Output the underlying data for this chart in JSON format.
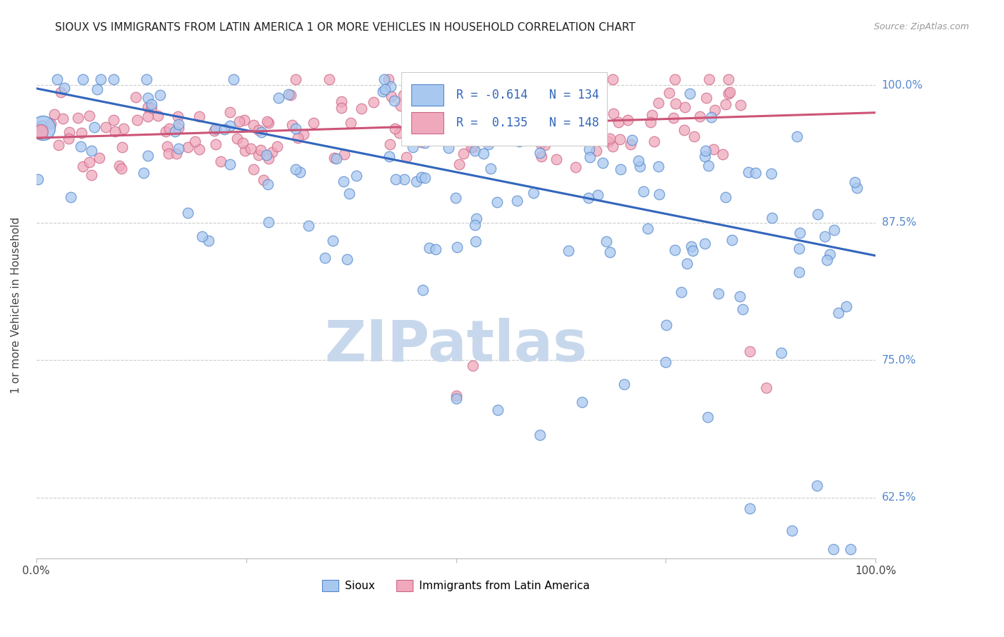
{
  "title": "SIOUX VS IMMIGRANTS FROM LATIN AMERICA 1 OR MORE VEHICLES IN HOUSEHOLD CORRELATION CHART",
  "source": "Source: ZipAtlas.com",
  "ylabel": "1 or more Vehicles in Household",
  "ytick_labels": [
    "62.5%",
    "75.0%",
    "87.5%",
    "100.0%"
  ],
  "ytick_values": [
    0.625,
    0.75,
    0.875,
    1.0
  ],
  "xlim": [
    0.0,
    1.0
  ],
  "ylim": [
    0.57,
    1.03
  ],
  "legend_blue_label": "Sioux",
  "legend_pink_label": "Immigrants from Latin America",
  "R_blue": -0.614,
  "N_blue": 134,
  "R_pink": 0.135,
  "N_pink": 148,
  "blue_color": "#A8C8F0",
  "pink_color": "#F0A8BC",
  "blue_edge_color": "#5588CC",
  "pink_edge_color": "#CC6688",
  "blue_line_color": "#3366BB",
  "pink_line_color": "#CC5577",
  "blue_line_y_start": 0.997,
  "blue_line_y_end": 0.845,
  "pink_line_y_start": 0.952,
  "pink_line_y_end": 0.975,
  "watermark": "ZIPatlas",
  "watermark_color": "#C8D8EC",
  "ytick_color_right": "#5588CC",
  "grid_color": "#CCCCCC",
  "grid_style": "--"
}
